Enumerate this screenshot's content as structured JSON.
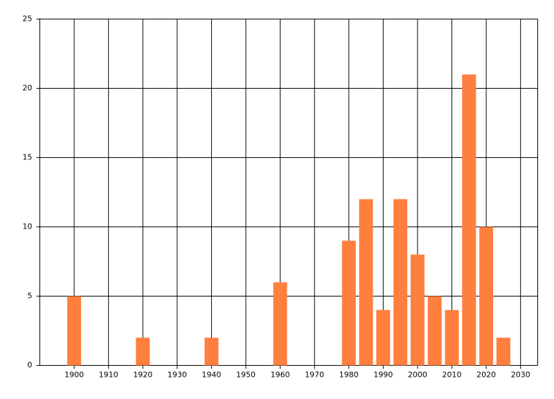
{
  "chart_data": {
    "type": "bar",
    "color": "#ff7f3f",
    "x": [
      1900,
      1920,
      1940,
      1960,
      1980,
      1985,
      1990,
      1995,
      2000,
      2005,
      2010,
      2015,
      2020,
      2025
    ],
    "values": [
      5,
      2,
      2,
      6,
      9,
      12,
      4,
      12,
      8,
      5,
      4,
      21,
      10,
      2
    ],
    "xlim": [
      1890,
      2035
    ],
    "xticks": [
      1900,
      1910,
      1920,
      1930,
      1940,
      1950,
      1960,
      1970,
      1980,
      1990,
      2000,
      2010,
      2020,
      2030
    ],
    "ylim": [
      0,
      25
    ],
    "yticks": [
      0,
      5,
      10,
      15,
      20,
      25
    ],
    "grid": true
  }
}
